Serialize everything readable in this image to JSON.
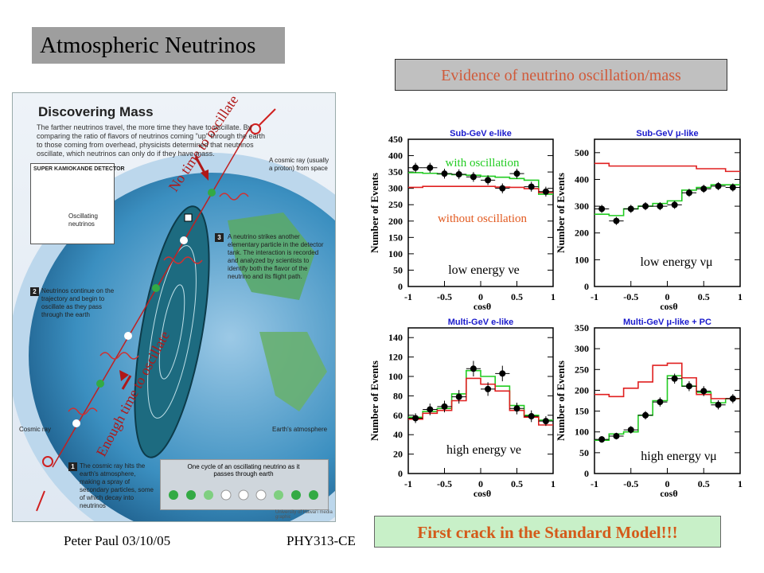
{
  "header": {
    "title": "Atmospheric Neutrinos",
    "evidence": "Evidence of neutrino oscillation/mass"
  },
  "footer": {
    "author": "Peter Paul 03/10/05",
    "course": "PHY313-CE",
    "crack": "First crack in the Standard Model!!!"
  },
  "graphic": {
    "title": "Discovering Mass",
    "intro": "The farther neutrinos travel, the more time they have to oscillate. By comparing the ratio of flavors of neutrinos coming \"up\" through the earth to those coming from overhead, physicists determined that neutrinos oscillate, which neutrinos can only do if they have mass.",
    "detector_label": "SUPER KAMIOKANDE DETECTOR",
    "oscillating_label": "Oscillating neutrinos",
    "cosmic_ray_top": "A cosmic ray (usually a proton) from space",
    "step3": "A neutrino strikes another elementary particle in the detector tank. The interaction is recorded and analyzed by scientists to identify both the flavor of the neutrino and its flight path.",
    "step2": "Neutrinos continue on the trajectory and begin to oscillate as they pass through the earth",
    "cosmic_ray_bottom": "Cosmic ray",
    "step1": "The cosmic ray hits the earth's atmosphere, making a spray of secondary particles, some of which decay into neutrinos",
    "atmosphere": "Earth's atmosphere",
    "cycle": "One cycle of an oscillating neutrino as it passes through earth",
    "credit": "University of Hawai'i media graphic",
    "num1": "1",
    "num2": "2",
    "num3": "3",
    "no_time": "No time to oscillate",
    "enough_time": "Enough time to oscillate"
  },
  "colors": {
    "green": "#22cc22",
    "red": "#e02020",
    "ocean": "#2a7fa8",
    "panel_title": "#1a1acc",
    "annot": "#e25a20"
  },
  "chart_data": [
    {
      "type": "line",
      "title": "Sub-GeV e-like",
      "xlabel": "cosθ",
      "ylabel": "Number of Events",
      "xlim": [
        -1,
        1
      ],
      "ylim": [
        0,
        450
      ],
      "yticks": [
        0,
        50,
        100,
        150,
        200,
        250,
        300,
        350,
        400,
        450
      ],
      "xticks": [
        "-1",
        "-0.5",
        "0",
        "0.5",
        "1"
      ],
      "annotation": "low energy νe",
      "series_labels": {
        "oscillation": "with oscillation",
        "no_oscillation": "without oscillation"
      },
      "x": [
        -0.9,
        -0.7,
        -0.5,
        -0.3,
        -0.1,
        0.1,
        0.3,
        0.5,
        0.7,
        0.9
      ],
      "data": [
        363,
        363,
        345,
        343,
        335,
        325,
        300,
        345,
        305,
        290
      ],
      "err": [
        15,
        15,
        15,
        15,
        15,
        15,
        15,
        15,
        15,
        15
      ],
      "series": [
        {
          "name": "with oscillation",
          "color": "#22cc22",
          "values": [
            348,
            346,
            344,
            342,
            340,
            337,
            334,
            330,
            325,
            282
          ]
        },
        {
          "name": "without oscillation",
          "color": "#e02020",
          "values": [
            303,
            306,
            306,
            306,
            306,
            306,
            304,
            303,
            299,
            287
          ]
        }
      ]
    },
    {
      "type": "line",
      "title": "Sub-GeV μ-like",
      "xlabel": "cosθ",
      "ylabel": "Number of Events",
      "xlim": [
        -1,
        1
      ],
      "ylim": [
        0,
        550
      ],
      "yticks": [
        0,
        100,
        200,
        300,
        400,
        500
      ],
      "xticks": [
        "-1",
        "-0.5",
        "0",
        "0.5",
        "1"
      ],
      "annotation": "low energy νμ",
      "x": [
        -0.9,
        -0.7,
        -0.5,
        -0.3,
        -0.1,
        0.1,
        0.3,
        0.5,
        0.7,
        0.9
      ],
      "data": [
        290,
        245,
        290,
        300,
        300,
        305,
        350,
        365,
        375,
        370
      ],
      "err": [
        15,
        15,
        15,
        15,
        15,
        15,
        15,
        15,
        15,
        15
      ],
      "series": [
        {
          "name": "with oscillation",
          "color": "#22cc22",
          "values": [
            270,
            265,
            290,
            300,
            310,
            320,
            360,
            370,
            380,
            380
          ]
        },
        {
          "name": "without oscillation",
          "color": "#e02020",
          "values": [
            460,
            450,
            450,
            450,
            450,
            450,
            450,
            440,
            440,
            430
          ]
        }
      ]
    },
    {
      "type": "line",
      "title": "Multi-GeV e-like",
      "xlabel": "cosθ",
      "ylabel": "Number of Events",
      "xlim": [
        -1,
        1
      ],
      "ylim": [
        0,
        150
      ],
      "yticks": [
        0,
        20,
        40,
        60,
        80,
        100,
        120,
        140
      ],
      "xticks": [
        "-1",
        "-0.5",
        "0",
        "0.5",
        "1"
      ],
      "annotation": "high energy νe",
      "x": [
        -0.9,
        -0.7,
        -0.5,
        -0.3,
        -0.1,
        0.1,
        0.3,
        0.5,
        0.7,
        0.9
      ],
      "data": [
        57,
        66,
        69,
        79,
        108,
        87,
        103,
        67,
        59,
        54
      ],
      "err": [
        5,
        6,
        6,
        7,
        8,
        7,
        8,
        6,
        6,
        5
      ],
      "series": [
        {
          "name": "with oscillation",
          "color": "#22cc22",
          "values": [
            58,
            64,
            67,
            82,
            106,
            100,
            90,
            70,
            60,
            55
          ]
        },
        {
          "name": "without oscillation",
          "color": "#e02020",
          "values": [
            56,
            62,
            65,
            75,
            98,
            92,
            85,
            65,
            58,
            50
          ]
        }
      ]
    },
    {
      "type": "line",
      "title": "Multi-GeV μ-like + PC",
      "xlabel": "cosθ",
      "ylabel": "Number of Events",
      "xlim": [
        -1,
        1
      ],
      "ylim": [
        0,
        350
      ],
      "yticks": [
        0,
        50,
        100,
        150,
        200,
        250,
        300,
        350
      ],
      "xticks": [
        "-1",
        "-0.5",
        "0",
        "0.5",
        "1"
      ],
      "annotation": "high energy νμ",
      "x": [
        -0.9,
        -0.7,
        -0.5,
        -0.3,
        -0.1,
        0.1,
        0.3,
        0.5,
        0.7,
        0.9
      ],
      "data": [
        82,
        90,
        105,
        140,
        172,
        228,
        210,
        198,
        165,
        180
      ],
      "err": [
        8,
        8,
        9,
        10,
        11,
        12,
        12,
        12,
        11,
        11
      ],
      "series": [
        {
          "name": "with oscillation",
          "color": "#22cc22",
          "values": [
            80,
            95,
            100,
            140,
            175,
            235,
            210,
            195,
            170,
            180
          ]
        },
        {
          "name": "without oscillation",
          "color": "#e02020",
          "values": [
            190,
            185,
            205,
            220,
            260,
            265,
            230,
            190,
            180,
            180
          ]
        }
      ]
    }
  ]
}
